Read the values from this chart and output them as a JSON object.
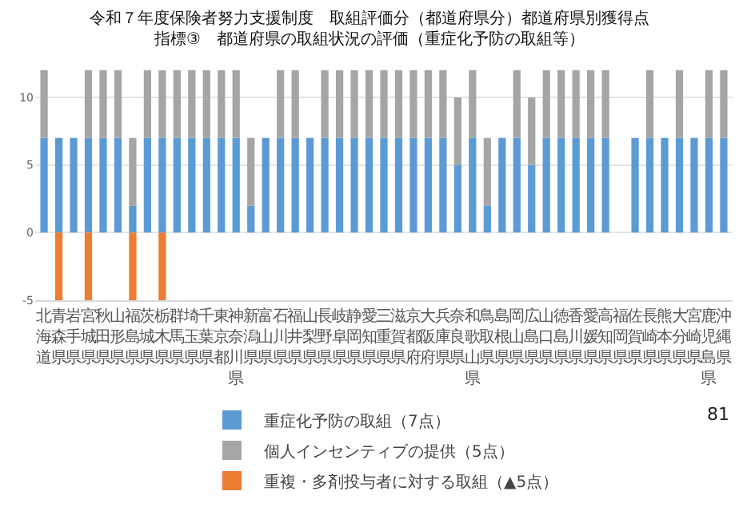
{
  "chart_data": {
    "type": "bar",
    "title": "令和７年度保険者努力支援制度　取組評価分（都道府県分）都道府県別獲得点",
    "subtitle": "指標③　都道府県の取組状況の評価（重症化予防の取組等）",
    "categories": [
      "北海道",
      "青森県",
      "岩手県",
      "宮城県",
      "秋田県",
      "山形県",
      "福島県",
      "茨城県",
      "栃木県",
      "群馬県",
      "埼玉県",
      "千葉県",
      "東京都",
      "神奈川県",
      "新潟県",
      "富山県",
      "石川県",
      "福井県",
      "山梨県",
      "長野県",
      "岐阜県",
      "静岡県",
      "愛知県",
      "三重県",
      "滋賀県",
      "京都府",
      "大阪府",
      "兵庫県",
      "奈良県",
      "和歌山県",
      "鳥取県",
      "島根県",
      "岡山県",
      "広島県",
      "山口県",
      "徳島県",
      "香川県",
      "愛媛県",
      "高知県",
      "福岡県",
      "佐賀県",
      "長崎県",
      "熊本県",
      "大分県",
      "宮崎県",
      "鹿児島県",
      "沖縄県"
    ],
    "stacked": true,
    "series": [
      {
        "name": "重症化予防の取組（7点）",
        "color": "#5b9bd5",
        "values": [
          7,
          7,
          7,
          7,
          7,
          7,
          2,
          7,
          7,
          7,
          7,
          7,
          7,
          7,
          2,
          7,
          7,
          7,
          7,
          7,
          7,
          7,
          7,
          7,
          7,
          7,
          7,
          7,
          5,
          7,
          2,
          7,
          7,
          5,
          7,
          7,
          7,
          7,
          7,
          0,
          7,
          7,
          7,
          7,
          7,
          7,
          7
        ]
      },
      {
        "name": "個人インセンティブの提供（5点）",
        "color": "#a5a5a5",
        "values": [
          5,
          0,
          0,
          5,
          5,
          5,
          5,
          5,
          5,
          5,
          5,
          5,
          5,
          5,
          5,
          0,
          5,
          5,
          0,
          5,
          5,
          5,
          5,
          5,
          5,
          5,
          5,
          5,
          5,
          5,
          5,
          0,
          5,
          5,
          5,
          5,
          5,
          5,
          5,
          0,
          0,
          5,
          0,
          5,
          0,
          5,
          5
        ]
      },
      {
        "name": "重複・多剤投与者に対する取組（▲5点）",
        "color": "#ed7d31",
        "values": [
          null,
          -5,
          null,
          -5,
          null,
          null,
          -5,
          null,
          -5,
          null,
          null,
          null,
          null,
          null,
          null,
          null,
          null,
          null,
          null,
          null,
          null,
          null,
          null,
          null,
          null,
          null,
          null,
          null,
          null,
          null,
          null,
          null,
          null,
          null,
          null,
          null,
          null,
          null,
          null,
          null,
          null,
          null,
          null,
          null,
          null,
          null,
          null
        ]
      }
    ],
    "ylim": [
      -5,
      12
    ],
    "yticks": [
      -5,
      0,
      5,
      10
    ],
    "grid": "y",
    "legend": "bottom",
    "annotations": [
      "81"
    ]
  }
}
